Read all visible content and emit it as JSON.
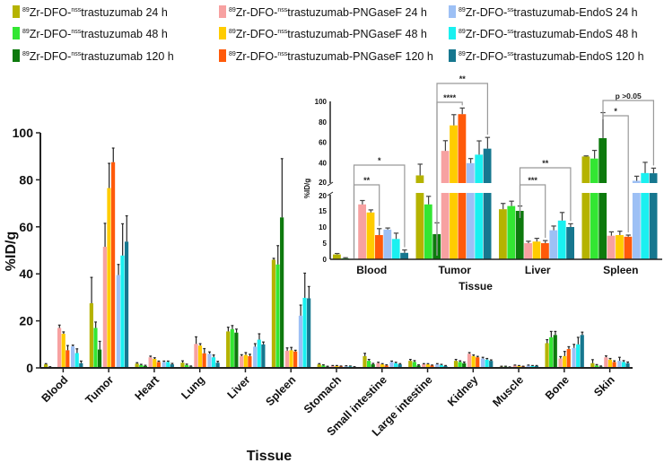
{
  "chart_data": [
    {
      "type": "bar",
      "title": "",
      "xlabel": "Tissue",
      "ylabel": "%ID/g",
      "ylim": [
        0,
        100
      ],
      "yticks": [
        "0",
        "20",
        "40",
        "60",
        "80",
        "100"
      ],
      "legend_position": "top",
      "categories": [
        "Blood",
        "Tumor",
        "Heart",
        "Lung",
        "Liver",
        "Spleen",
        "Stomach",
        "Small intestine",
        "Large intestine",
        "Kidney",
        "Muscle",
        "Bone",
        "Skin"
      ],
      "series": [
        {
          "name": "89Zr-DFO-nsstrastuzumab 24 h",
          "legend": {
            "iso": "89",
            "pre": "Zr-DFO-",
            "sup": "nss",
            "post": "trastuzumab 24 h"
          },
          "color": "#b5b300",
          "values": [
            1.5,
            27.5,
            1.8,
            2.2,
            15.5,
            46,
            1.5,
            5,
            3,
            3,
            0.5,
            10.5,
            2
          ],
          "errors": [
            0.3,
            11,
            0.4,
            0.8,
            1.8,
            0.6,
            0.3,
            1.2,
            0.6,
            0.6,
            0.2,
            1.5,
            1.5
          ]
        },
        {
          "name": "89Zr-DFO-nsstrastuzumab 48 h",
          "legend": {
            "iso": "89",
            "pre": "Zr-DFO-",
            "sup": "nss",
            "post": "trastuzumab 48 h"
          },
          "color": "#33e633",
          "values": [
            0.3,
            17,
            1.2,
            1.2,
            16.5,
            44,
            1,
            3,
            2.5,
            2.5,
            0.5,
            13,
            1
          ],
          "errors": [
            0.2,
            2.5,
            0.3,
            0.4,
            1.5,
            8,
            0.3,
            0.6,
            0.6,
            0.5,
            0.2,
            2.5,
            0.4
          ]
        },
        {
          "name": "89Zr-DFO-nsstrastuzumab 120 h",
          "legend": {
            "iso": "89",
            "pre": "Zr-DFO-",
            "sup": "nss",
            "post": "trastuzumab 120 h"
          },
          "color": "#0d7a0d",
          "values": [
            0,
            7.8,
            0.8,
            0.5,
            15,
            64,
            0.5,
            1.5,
            1,
            2,
            0.3,
            14,
            0.5
          ],
          "errors": [
            0,
            3.5,
            0.3,
            0.3,
            1.5,
            25,
            0.2,
            0.4,
            0.3,
            0.5,
            0.1,
            1.5,
            0.3
          ]
        },
        {
          "name": "89Zr-DFO-nsstrastuzumab-PNGaseF 24 h",
          "legend": {
            "iso": "89",
            "pre": "Zr-DFO-",
            "sup": "nss",
            "post": "trastuzumab-PNGaseF 24 h"
          },
          "color": "#f7a1a1",
          "values": [
            17,
            51.5,
            4.5,
            10.2,
            5,
            7.3,
            0.8,
            2,
            1.5,
            6,
            1,
            4,
            4.5
          ],
          "errors": [
            1.2,
            10,
            0.5,
            3,
            0.6,
            1.2,
            0.2,
            0.4,
            0.3,
            0.5,
            0.2,
            0.8,
            0.6
          ]
        },
        {
          "name": "89Zr-DFO-nsstrastuzumab-PNGaseF 48 h",
          "legend": {
            "iso": "89",
            "pre": "Zr-DFO-",
            "sup": "nss",
            "post": "trastuzumab-PNGaseF 48 h"
          },
          "color": "#ffcc00",
          "values": [
            14.5,
            76.5,
            3.8,
            9.5,
            5.5,
            7.5,
            0.8,
            1.5,
            1.5,
            5,
            0.8,
            5,
            3.5
          ],
          "errors": [
            0.8,
            10.5,
            0.5,
            0.8,
            1,
            1.2,
            0.2,
            0.3,
            0.3,
            0.5,
            0.2,
            2,
            0.5
          ]
        },
        {
          "name": "89Zr-DFO-nsstrastuzumab-PNGaseF 120 h",
          "legend": {
            "iso": "89",
            "pre": "Zr-DFO-",
            "sup": "nss",
            "post": "trastuzumab-PNGaseF 120 h"
          },
          "color": "#ff5a0a",
          "values": [
            7.5,
            87.5,
            2.5,
            6.2,
            5,
            7,
            0.6,
            1,
            1,
            4.5,
            0.6,
            8,
            2.5
          ],
          "errors": [
            2,
            6,
            0.4,
            2,
            0.8,
            0.5,
            0.2,
            0.3,
            0.2,
            0.4,
            0.1,
            1,
            0.5
          ]
        },
        {
          "name": "89Zr-DFO-sstrastuzumab-EndoS 24 h",
          "legend": {
            "iso": "89",
            "pre": "Zr-DFO-",
            "sup": "ss",
            "post": "trastuzumab-EndoS 24 h"
          },
          "color": "#9dc0f5",
          "values": [
            9.2,
            39.5,
            2.5,
            6,
            9,
            22.2,
            0.7,
            2.5,
            1.5,
            4,
            1,
            8.5,
            3
          ],
          "errors": [
            0.5,
            4.5,
            0.4,
            0.8,
            1.3,
            4.5,
            0.2,
            0.4,
            0.3,
            0.5,
            0.2,
            1.5,
            1.5
          ]
        },
        {
          "name": "89Zr-DFO-sstrastuzumab-EndoS 48 h",
          "legend": {
            "iso": "89",
            "pre": "Zr-DFO-",
            "sup": "ss",
            "post": "trastuzumab-EndoS 48 h"
          },
          "color": "#1af0f0",
          "values": [
            6.3,
            47.8,
            2.5,
            4.5,
            12,
            29.8,
            0.6,
            2,
            1.2,
            3.5,
            0.8,
            10,
            2.5
          ],
          "errors": [
            1.8,
            13.5,
            0.4,
            1,
            2.5,
            10.5,
            0.2,
            0.4,
            0.3,
            0.5,
            0.2,
            3,
            0.6
          ]
        },
        {
          "name": "89Zr-DFO-sstrastuzumab-EndoS 120 h",
          "legend": {
            "iso": "89",
            "pre": "Zr-DFO-",
            "sup": "ss",
            "post": "trastuzumab-EndoS 120 h"
          },
          "color": "#16778f",
          "values": [
            2,
            53.7,
            1.5,
            2.2,
            10,
            29.6,
            0.4,
            1.5,
            0.8,
            3,
            0.8,
            14,
            2
          ],
          "errors": [
            0.9,
            11,
            0.4,
            0.6,
            1,
            5,
            0.1,
            0.3,
            0.2,
            0.4,
            0.2,
            1.2,
            0.5
          ]
        }
      ]
    },
    {
      "type": "bar",
      "title": "",
      "xlabel": "Tissue",
      "ylabel": "%ID/g",
      "y_axis_break": [
        20,
        20
      ],
      "yticks_lower": [
        "0",
        "5",
        "10",
        "15",
        "20"
      ],
      "yticks_upper": [
        "20",
        "40",
        "60",
        "80",
        "100"
      ],
      "categories": [
        "Blood",
        "Tumor",
        "Liver",
        "Spleen"
      ],
      "source_category_indices": [
        0,
        1,
        4,
        5
      ],
      "annotations": [
        {
          "category": "Blood",
          "from_series": 2,
          "to_series": 5,
          "label": "**"
        },
        {
          "category": "Blood",
          "from_series": 2,
          "to_series": 8,
          "label": "*"
        },
        {
          "category": "Tumor",
          "from_series": 2,
          "to_series": 5,
          "label": "****"
        },
        {
          "category": "Tumor",
          "from_series": 2,
          "to_series": 8,
          "label": "**"
        },
        {
          "category": "Liver",
          "from_series": 2,
          "to_series": 5,
          "label": "***"
        },
        {
          "category": "Liver",
          "from_series": 2,
          "to_series": 8,
          "label": "**"
        },
        {
          "category": "Spleen",
          "from_series": 2,
          "to_series": 5,
          "label": "*"
        },
        {
          "category": "Spleen",
          "from_series": 2,
          "to_series": 8,
          "label": "p >0.05"
        }
      ]
    }
  ]
}
